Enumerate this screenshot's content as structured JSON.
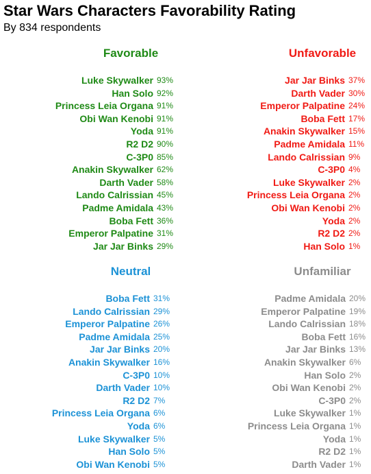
{
  "chart_data": {
    "type": "table",
    "title": "Star Wars Characters Favorability Rating",
    "subtitle": "By 834 respondents",
    "groups": [
      {
        "key": "favorable",
        "title": "Favorable",
        "color": "#1f8a16",
        "rows": [
          {
            "name": "Luke Skywalker",
            "pct": "93%"
          },
          {
            "name": "Han Solo",
            "pct": "92%"
          },
          {
            "name": "Princess Leia Organa",
            "pct": "91%"
          },
          {
            "name": "Obi Wan Kenobi",
            "pct": "91%"
          },
          {
            "name": "Yoda",
            "pct": "91%"
          },
          {
            "name": "R2 D2",
            "pct": "90%"
          },
          {
            "name": "C-3P0",
            "pct": "85%"
          },
          {
            "name": "Anakin Skywalker",
            "pct": "62%"
          },
          {
            "name": "Darth Vader",
            "pct": "58%"
          },
          {
            "name": "Lando Calrissian",
            "pct": "45%"
          },
          {
            "name": "Padme Amidala",
            "pct": "43%"
          },
          {
            "name": "Boba Fett",
            "pct": "36%"
          },
          {
            "name": "Emperor Palpatine",
            "pct": "31%"
          },
          {
            "name": "Jar Jar Binks",
            "pct": "29%"
          }
        ]
      },
      {
        "key": "unfavorable",
        "title": "Unfavorable",
        "color": "#f01a14",
        "rows": [
          {
            "name": "Jar Jar Binks",
            "pct": "37%"
          },
          {
            "name": "Darth Vader",
            "pct": "30%"
          },
          {
            "name": "Emperor Palpatine",
            "pct": "24%"
          },
          {
            "name": "Boba Fett",
            "pct": "17%"
          },
          {
            "name": "Anakin Skywalker",
            "pct": "15%"
          },
          {
            "name": "Padme Amidala",
            "pct": "11%"
          },
          {
            "name": "Lando Calrissian",
            "pct": "9%"
          },
          {
            "name": "C-3P0",
            "pct": "4%"
          },
          {
            "name": "Luke Skywalker",
            "pct": "2%"
          },
          {
            "name": "Princess Leia Organa",
            "pct": "2%"
          },
          {
            "name": "Obi Wan Kenobi",
            "pct": "2%"
          },
          {
            "name": "Yoda",
            "pct": "2%"
          },
          {
            "name": "R2 D2",
            "pct": "2%"
          },
          {
            "name": "Han Solo",
            "pct": "1%"
          }
        ]
      },
      {
        "key": "neutral",
        "title": "Neutral",
        "color": "#1c92d6",
        "rows": [
          {
            "name": "Boba Fett",
            "pct": "31%"
          },
          {
            "name": "Lando Calrissian",
            "pct": "29%"
          },
          {
            "name": "Emperor Palpatine",
            "pct": "26%"
          },
          {
            "name": "Padme Amidala",
            "pct": "25%"
          },
          {
            "name": "Jar Jar Binks",
            "pct": "20%"
          },
          {
            "name": "Anakin Skywalker",
            "pct": "16%"
          },
          {
            "name": "C-3P0",
            "pct": "10%"
          },
          {
            "name": "Darth Vader",
            "pct": "10%"
          },
          {
            "name": "R2 D2",
            "pct": "7%"
          },
          {
            "name": "Princess Leia Organa",
            "pct": "6%"
          },
          {
            "name": "Yoda",
            "pct": "6%"
          },
          {
            "name": "Luke Skywalker",
            "pct": "5%"
          },
          {
            "name": "Han Solo",
            "pct": "5%"
          },
          {
            "name": "Obi Wan Kenobi",
            "pct": "5%"
          }
        ]
      },
      {
        "key": "unfamiliar",
        "title": "Unfamiliar",
        "color": "#8c8c8c",
        "rows": [
          {
            "name": "Padme Amidala",
            "pct": "20%"
          },
          {
            "name": "Emperor Palpatine",
            "pct": "19%"
          },
          {
            "name": "Lando Calrissian",
            "pct": "18%"
          },
          {
            "name": "Boba Fett",
            "pct": "16%"
          },
          {
            "name": "Jar Jar Binks",
            "pct": "13%"
          },
          {
            "name": "Anakin Skywalker",
            "pct": "6%"
          },
          {
            "name": "Han Solo",
            "pct": "2%"
          },
          {
            "name": "Obi Wan Kenobi",
            "pct": "2%"
          },
          {
            "name": "C-3P0",
            "pct": "2%"
          },
          {
            "name": "Luke Skywalker",
            "pct": "1%"
          },
          {
            "name": "Princess Leia Organa",
            "pct": "1%"
          },
          {
            "name": "Yoda",
            "pct": "1%"
          },
          {
            "name": "R2 D2",
            "pct": "1%"
          },
          {
            "name": "Darth Vader",
            "pct": "1%"
          }
        ]
      }
    ]
  }
}
